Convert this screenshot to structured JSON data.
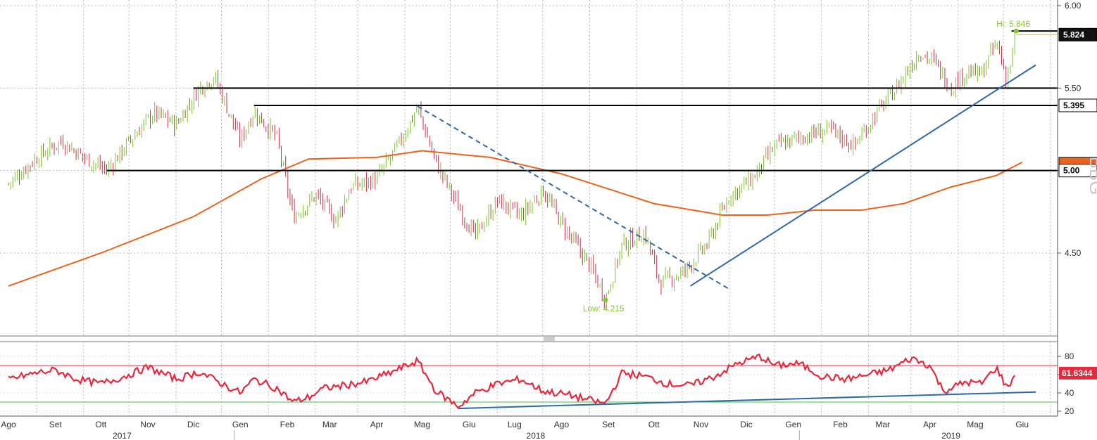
{
  "chart_data": [
    {
      "type": "candlestick",
      "panel": "price",
      "ylim": [
        4.05,
        6.0
      ],
      "yticks": [
        4.5,
        5.0,
        5.5,
        6.0
      ],
      "ytick_labels": [
        "4.50",
        "5.00",
        "5.50",
        "6.00"
      ],
      "grid": true,
      "up_color": "#7dc42a",
      "down_color": "#c8324a",
      "close_series": [
        [
          "2017-08-01",
          4.92
        ],
        [
          "2017-08-20",
          5.08
        ],
        [
          "2017-09-05",
          5.18
        ],
        [
          "2017-09-20",
          5.08
        ],
        [
          "2017-10-05",
          5.0
        ],
        [
          "2017-10-20",
          5.18
        ],
        [
          "2017-11-05",
          5.35
        ],
        [
          "2017-11-20",
          5.28
        ],
        [
          "2017-12-05",
          5.5
        ],
        [
          "2017-12-15",
          5.57
        ],
        [
          "2018-01-01",
          5.18
        ],
        [
          "2018-01-10",
          5.36
        ],
        [
          "2018-01-25",
          5.2
        ],
        [
          "2018-02-05",
          4.72
        ],
        [
          "2018-02-20",
          4.85
        ],
        [
          "2018-03-05",
          4.7
        ],
        [
          "2018-03-15",
          4.9
        ],
        [
          "2018-04-01",
          4.95
        ],
        [
          "2018-04-15",
          5.15
        ],
        [
          "2018-04-28",
          5.38
        ],
        [
          "2018-05-10",
          5.05
        ],
        [
          "2018-05-25",
          4.78
        ],
        [
          "2018-06-05",
          4.6
        ],
        [
          "2018-06-20",
          4.82
        ],
        [
          "2018-07-05",
          4.72
        ],
        [
          "2018-07-20",
          4.88
        ],
        [
          "2018-08-01",
          4.68
        ],
        [
          "2018-08-20",
          4.42
        ],
        [
          "2018-08-30",
          4.22
        ],
        [
          "2018-09-10",
          4.55
        ],
        [
          "2018-09-25",
          4.62
        ],
        [
          "2018-10-05",
          4.32
        ],
        [
          "2018-10-20",
          4.38
        ],
        [
          "2018-11-05",
          4.55
        ],
        [
          "2018-11-20",
          4.85
        ],
        [
          "2018-12-05",
          4.95
        ],
        [
          "2018-12-20",
          5.15
        ],
        [
          "2019-01-05",
          5.2
        ],
        [
          "2019-01-25",
          5.25
        ],
        [
          "2019-02-10",
          5.15
        ],
        [
          "2019-02-25",
          5.35
        ],
        [
          "2019-03-10",
          5.5
        ],
        [
          "2019-03-25",
          5.72
        ],
        [
          "2019-04-05",
          5.65
        ],
        [
          "2019-04-15",
          5.5
        ],
        [
          "2019-04-25",
          5.6
        ],
        [
          "2019-05-05",
          5.58
        ],
        [
          "2019-05-15",
          5.78
        ],
        [
          "2019-05-22",
          5.55
        ],
        [
          "2019-05-28",
          5.824
        ]
      ],
      "moving_average": {
        "color": "#e8641e",
        "points": [
          [
            "2017-08-01",
            4.3
          ],
          [
            "2017-10-01",
            4.5
          ],
          [
            "2017-12-01",
            4.72
          ],
          [
            "2018-01-15",
            4.95
          ],
          [
            "2018-02-15",
            5.07
          ],
          [
            "2018-04-01",
            5.08
          ],
          [
            "2018-05-01",
            5.12
          ],
          [
            "2018-06-15",
            5.08
          ],
          [
            "2018-08-01",
            4.98
          ],
          [
            "2018-10-01",
            4.8
          ],
          [
            "2018-11-15",
            4.73
          ],
          [
            "2018-12-15",
            4.73
          ],
          [
            "2019-01-15",
            4.76
          ],
          [
            "2019-02-15",
            4.76
          ],
          [
            "2019-03-15",
            4.8
          ],
          [
            "2019-04-15",
            4.9
          ],
          [
            "2019-05-15",
            4.97
          ],
          [
            "2019-06-01",
            5.05
          ]
        ]
      },
      "levels": [
        {
          "value": 5.5,
          "from": "2017-12-01",
          "color": "#000000"
        },
        {
          "value": 5.395,
          "from": "2018-01-10",
          "color": "#000000"
        },
        {
          "value": 5.0,
          "from": "2017-10-05",
          "color": "#000000"
        },
        {
          "value": 5.846,
          "from": "2019-05-25",
          "color": "#000000"
        }
      ],
      "trendlines": [
        {
          "from": [
            "2018-04-28",
            5.39
          ],
          "to": [
            "2018-11-20",
            4.28
          ],
          "style": "dashed",
          "color": "#2e6aa8"
        },
        {
          "from": [
            "2018-10-25",
            4.3
          ],
          "to": [
            "2019-06-10",
            5.64
          ],
          "style": "solid",
          "color": "#2e6aa8"
        }
      ],
      "annotations": [
        {
          "text": "Hi: 5.846",
          "x": "2019-05-28",
          "y": 5.846,
          "color": "#8ac432"
        },
        {
          "text": "Low: 4.215",
          "x": "2018-08-30",
          "y": 4.215,
          "color": "#8ac432"
        }
      ],
      "price_tags": [
        {
          "text": "5.824",
          "value": 5.824,
          "bg": "#111111",
          "fg": "#ffffff"
        },
        {
          "text": "5.395",
          "value": 5.395,
          "bg": "#ffffff",
          "fg": "#000000"
        },
        {
          "text": "5.0416",
          "value": 5.0416,
          "bg": "#e8641e",
          "fg": "#e8641e"
        },
        {
          "text": "5.00",
          "value": 5.0,
          "bg": "#ffffff",
          "fg": "#000000"
        }
      ]
    },
    {
      "type": "line",
      "panel": "rsi",
      "ylim": [
        15,
        90
      ],
      "yticks": [
        20,
        40,
        60,
        80
      ],
      "ytick_labels": [
        "20",
        "40",
        "60",
        "80"
      ],
      "overbought": 70,
      "oversold": 30,
      "color": "#e8283c",
      "last_value_label": "61.6344",
      "last_value": 61.6344,
      "points": [
        [
          "2017-08-01",
          55
        ],
        [
          "2017-08-20",
          62
        ],
        [
          "2017-09-01",
          65
        ],
        [
          "2017-09-15",
          55
        ],
        [
          "2017-10-01",
          50
        ],
        [
          "2017-10-15",
          57
        ],
        [
          "2017-11-01",
          68
        ],
        [
          "2017-11-20",
          55
        ],
        [
          "2017-12-05",
          63
        ],
        [
          "2017-12-20",
          50
        ],
        [
          "2018-01-01",
          40
        ],
        [
          "2018-01-10",
          55
        ],
        [
          "2018-01-25",
          45
        ],
        [
          "2018-02-05",
          30
        ],
        [
          "2018-02-15",
          35
        ],
        [
          "2018-02-25",
          45
        ],
        [
          "2018-03-10",
          48
        ],
        [
          "2018-03-25",
          52
        ],
        [
          "2018-04-10",
          62
        ],
        [
          "2018-04-28",
          75
        ],
        [
          "2018-05-10",
          42
        ],
        [
          "2018-05-25",
          25
        ],
        [
          "2018-06-05",
          40
        ],
        [
          "2018-06-20",
          50
        ],
        [
          "2018-07-05",
          55
        ],
        [
          "2018-07-20",
          42
        ],
        [
          "2018-08-05",
          38
        ],
        [
          "2018-08-20",
          32
        ],
        [
          "2018-08-30",
          28
        ],
        [
          "2018-09-10",
          62
        ],
        [
          "2018-09-25",
          58
        ],
        [
          "2018-10-10",
          50
        ],
        [
          "2018-10-25",
          48
        ],
        [
          "2018-11-10",
          58
        ],
        [
          "2018-11-25",
          72
        ],
        [
          "2018-12-10",
          80
        ],
        [
          "2018-12-20",
          70
        ],
        [
          "2019-01-05",
          72
        ],
        [
          "2019-01-20",
          58
        ],
        [
          "2019-02-05",
          55
        ],
        [
          "2019-02-20",
          60
        ],
        [
          "2019-03-05",
          65
        ],
        [
          "2019-03-20",
          78
        ],
        [
          "2019-04-01",
          70
        ],
        [
          "2019-04-10",
          42
        ],
        [
          "2019-04-25",
          52
        ],
        [
          "2019-05-05",
          50
        ],
        [
          "2019-05-15",
          68
        ],
        [
          "2019-05-22",
          45
        ],
        [
          "2019-05-28",
          61.6
        ]
      ],
      "trendline": {
        "from": [
          "2018-05-25",
          23
        ],
        "to": [
          "2019-06-10",
          41
        ],
        "color": "#2e6aa8"
      }
    }
  ],
  "x_axis": {
    "months": [
      {
        "label": "Ago",
        "date": "2017-08-01"
      },
      {
        "label": "Set",
        "date": "2017-09-01"
      },
      {
        "label": "Ott",
        "date": "2017-10-01"
      },
      {
        "label": "Nov",
        "date": "2017-11-01"
      },
      {
        "label": "Dic",
        "date": "2017-12-01"
      },
      {
        "label": "Gen",
        "date": "2018-01-01"
      },
      {
        "label": "Feb",
        "date": "2018-02-01"
      },
      {
        "label": "Mar",
        "date": "2018-03-01"
      },
      {
        "label": "Apr",
        "date": "2018-04-01"
      },
      {
        "label": "Mag",
        "date": "2018-05-01"
      },
      {
        "label": "Giu",
        "date": "2018-06-01"
      },
      {
        "label": "Lug",
        "date": "2018-07-01"
      },
      {
        "label": "Ago",
        "date": "2018-08-01"
      },
      {
        "label": "Set",
        "date": "2018-09-01"
      },
      {
        "label": "Ott",
        "date": "2018-10-01"
      },
      {
        "label": "Nov",
        "date": "2018-11-01"
      },
      {
        "label": "Dic",
        "date": "2018-12-01"
      },
      {
        "label": "Gen",
        "date": "2019-01-01"
      },
      {
        "label": "Feb",
        "date": "2019-02-01"
      },
      {
        "label": "Mar",
        "date": "2019-03-01"
      },
      {
        "label": "Apr",
        "date": "2019-04-01"
      },
      {
        "label": "Mag",
        "date": "2019-05-01"
      },
      {
        "label": "Giu",
        "date": "2019-06-01"
      }
    ],
    "years": [
      {
        "label": "2017",
        "date": "2017-10-15"
      },
      {
        "label": "2018",
        "date": "2018-07-15"
      },
      {
        "label": "2019",
        "date": "2019-04-15"
      }
    ]
  },
  "watermark": "BBG"
}
